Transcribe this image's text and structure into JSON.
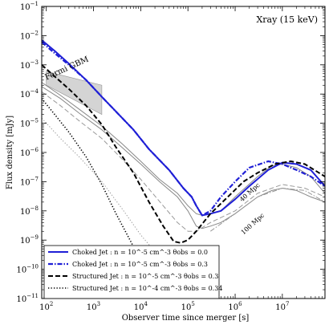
{
  "chart_data": {
    "type": "line",
    "band_label": "Xray (15 keV)",
    "xlabel": "Observer time since merger [s]",
    "ylabel": "Flux density [mJy]",
    "xscale": "log",
    "yscale": "log",
    "xlim": [
      80,
      80000000
    ],
    "ylim": [
      1e-11,
      0.1
    ],
    "x_ticks": [
      {
        "value": 100,
        "label": "10^2"
      },
      {
        "value": 1000,
        "label": "10^3"
      },
      {
        "value": 10000,
        "label": "10^4"
      },
      {
        "value": 100000,
        "label": "10^5"
      },
      {
        "value": 1000000,
        "label": "10^6"
      },
      {
        "value": 10000000,
        "label": "10^7"
      }
    ],
    "y_ticks": [
      {
        "value": 1e-11,
        "label": "10^-11"
      },
      {
        "value": 1e-10,
        "label": "10^-10"
      },
      {
        "value": 1e-09,
        "label": "10^-9"
      },
      {
        "value": 1e-08,
        "label": "10^-8"
      },
      {
        "value": 1e-07,
        "label": "10^-7"
      },
      {
        "value": 1e-06,
        "label": "10^-6"
      },
      {
        "value": 1e-05,
        "label": "10^-5"
      },
      {
        "value": 0.0001,
        "label": "10^-4"
      },
      {
        "value": 0.001,
        "label": "10^-3"
      },
      {
        "value": 0.01,
        "label": "10^-2"
      },
      {
        "value": 0.1,
        "label": "10^-1"
      }
    ],
    "grid": false,
    "legend_position": "bottom-left",
    "annotations": [
      {
        "text": "Fermi GBM",
        "x": 100,
        "y": 0.0003,
        "angle": -24
      },
      {
        "text": "40 Mpc",
        "x": 1400000,
        "y": 2e-08,
        "angle": -42
      },
      {
        "text": "100 Mpc",
        "x": 1500000,
        "y": 1.5e-09,
        "angle": -42
      }
    ],
    "shaded_region": {
      "name": "Fermi GBM sensitivity",
      "color": "#d0d0d0",
      "polygon": [
        [
          100,
          0.0006
        ],
        [
          1500,
          0.0002
        ],
        [
          1500,
          2e-05
        ],
        [
          100,
          0.0002
        ]
      ]
    },
    "series": [
      {
        "name": "Choked Jet : n = 10^-5 cm^-3 θobs = 0.0",
        "color": "#1f1fd6",
        "style": "solid",
        "x": [
          80,
          150,
          300,
          700,
          1500,
          3000,
          7000,
          15000,
          40000,
          80000,
          120000,
          150000,
          200000,
          300000,
          500000,
          1000000,
          2000000,
          5000000,
          10000000,
          20000000,
          40000000,
          80000000
        ],
        "y": [
          0.007,
          0.003,
          0.0011,
          0.0003,
          8e-05,
          2.5e-05,
          6e-06,
          1.3e-06,
          2.5e-07,
          6e-08,
          3e-08,
          1.5e-08,
          7e-09,
          8e-09,
          1e-08,
          2.5e-08,
          7e-08,
          2.5e-07,
          4.5e-07,
          4e-07,
          2.5e-07,
          7e-08
        ]
      },
      {
        "name": "Choked Jet : n = 10^-5 cm^-3 θobs = 0.3",
        "color": "#1f1fd6",
        "style": "dashdot",
        "x": [
          80,
          150,
          300,
          700,
          1500,
          3000,
          7000,
          15000,
          40000,
          80000,
          120000,
          150000,
          200000,
          300000,
          500000,
          1000000,
          2000000,
          5000000,
          10000000,
          20000000,
          40000000,
          80000000
        ],
        "y": [
          0.006,
          0.0025,
          0.001,
          0.0003,
          8e-05,
          2.5e-05,
          6e-06,
          1.3e-06,
          2.5e-07,
          6e-08,
          3e-08,
          1.5e-08,
          7e-09,
          1e-08,
          3e-08,
          1e-07,
          3e-07,
          5e-07,
          4e-07,
          2.5e-07,
          1.5e-07,
          7e-08
        ]
      },
      {
        "name": "Structured Jet : n = 10^-5 cm^-3 θobs = 0.3",
        "color": "#000000",
        "style": "dashed",
        "x": [
          80,
          150,
          300,
          700,
          1500,
          3000,
          7000,
          15000,
          30000,
          50000,
          70000,
          100000,
          150000,
          300000,
          700000,
          1500000,
          3000000,
          7000000,
          15000000,
          30000000,
          80000000
        ],
        "y": [
          0.001,
          0.0004,
          0.00015,
          4e-05,
          9e-06,
          1.5e-06,
          2e-07,
          2e-08,
          3e-09,
          9e-10,
          8e-10,
          1e-09,
          2e-09,
          8e-09,
          3e-08,
          1e-07,
          2e-07,
          4e-07,
          5e-07,
          4e-07,
          1.5e-07
        ]
      },
      {
        "name": "Structured Jet : n = 10^-4 cm^-3 θobs = 0.34",
        "color": "#000000",
        "style": "dotted",
        "x": [
          80,
          150,
          300,
          700,
          1500,
          3000,
          7000,
          15000,
          25000
        ],
        "y": [
          7e-05,
          2e-05,
          5e-06,
          7e-07,
          8e-08,
          8e-09,
          6e-10,
          4e-11,
          1e-11
        ]
      }
    ],
    "background_curves": [
      {
        "color": "#888888",
        "style": "solid",
        "x": [
          80,
          200,
          500,
          1500,
          4000,
          10000,
          25000,
          60000,
          100000,
          150000,
          200000,
          300000,
          500000,
          1000000,
          3000000,
          6000000,
          10000000,
          20000000,
          40000000,
          80000000
        ],
        "y": [
          0.00025,
          9e-05,
          3e-05,
          8e-06,
          2e-06,
          5e-07,
          1.2e-07,
          4e-08,
          1.5e-08,
          8e-09,
          7e-09,
          8e-09,
          1e-08,
          3e-08,
          1.5e-07,
          3.5e-07,
          4e-07,
          3e-07,
          1.5e-07,
          4e-08
        ]
      },
      {
        "color": "#888888",
        "style": "solid",
        "x": [
          80,
          200,
          500,
          1500,
          4000,
          10000,
          25000,
          60000,
          100000,
          150000,
          200000,
          300000,
          500000,
          1000000,
          3000000,
          6000000,
          10000000,
          20000000,
          40000000,
          80000000
        ],
        "y": [
          0.00018,
          7e-05,
          2.2e-05,
          6e-06,
          1.5e-06,
          4e-07,
          1e-07,
          3e-08,
          1e-08,
          3e-09,
          2.5e-09,
          3e-09,
          4e-09,
          8e-09,
          3e-08,
          5e-08,
          6e-08,
          5e-08,
          3e-08,
          2e-08
        ]
      },
      {
        "color": "#999999",
        "style": "dashed",
        "x": [
          80,
          200,
          500,
          1500,
          4000,
          10000,
          30000,
          60000,
          100000,
          150000,
          300000,
          1000000,
          3000000,
          10000000,
          30000000,
          80000000
        ],
        "y": [
          0.00012,
          4e-05,
          1.2e-05,
          3e-06,
          6e-07,
          1.2e-07,
          1.5e-08,
          4e-09,
          2e-09,
          2e-09,
          4e-09,
          1e-08,
          4e-08,
          8e-08,
          6e-08,
          3e-08
        ]
      },
      {
        "color": "#999999",
        "style": "dashdot",
        "x": [
          300000,
          1000000,
          3000000,
          10000000,
          30000000,
          80000000
        ],
        "y": [
          2e-09,
          8e-09,
          3e-08,
          6e-08,
          5e-08,
          2e-08
        ]
      },
      {
        "color": "#999999",
        "style": "dotted",
        "x": [
          80,
          200,
          500,
          1500,
          4000,
          10000,
          20000,
          50000
        ],
        "y": [
          1.5e-05,
          3e-06,
          7e-07,
          1e-07,
          1.2e-08,
          1.5e-09,
          4e-10,
          5e-11
        ]
      }
    ]
  }
}
